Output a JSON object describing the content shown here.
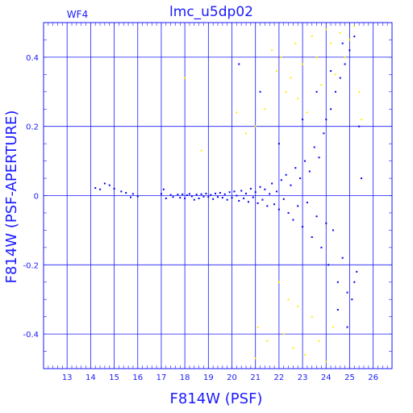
{
  "colors": {
    "axis": "#1a1aff",
    "series_main": "#0000ee",
    "series_rejected": "#ffee00",
    "background": "#ffffff"
  },
  "chart_data": {
    "type": "scatter",
    "title": "lmc_u5dp02",
    "panel_label": "WF4",
    "xlabel": "F814W (PSF)",
    "ylabel": "F814W (PSF-APERTURE)",
    "xlim": [
      12,
      26.8
    ],
    "ylim": [
      -0.5,
      0.5
    ],
    "x_ticks": [
      13,
      14,
      15,
      16,
      17,
      18,
      19,
      20,
      21,
      22,
      23,
      24,
      25,
      26
    ],
    "x_tick_labels": [
      "13",
      "14",
      "15",
      "16",
      "17",
      "18",
      "19",
      "20",
      "21",
      "22",
      "23",
      "24",
      "25",
      "26"
    ],
    "y_ticks": [
      -0.4,
      -0.2,
      0,
      0.2,
      0.4
    ],
    "y_tick_labels": [
      "-0.4",
      "-0.2",
      "0",
      "0.2",
      "0.4"
    ],
    "grid": true,
    "series": [
      {
        "color": "#0000ee",
        "points": [
          [
            14.2,
            0.022
          ],
          [
            14.4,
            0.018
          ],
          [
            14.6,
            0.035
          ],
          [
            14.8,
            0.03
          ],
          [
            15.0,
            0.02
          ],
          [
            15.3,
            0.012
          ],
          [
            15.5,
            0.008
          ],
          [
            15.7,
            -0.005
          ],
          [
            15.8,
            0.005
          ],
          [
            16.0,
            -0.002
          ],
          [
            17.0,
            0.005
          ],
          [
            17.1,
            0.018
          ],
          [
            17.2,
            -0.008
          ],
          [
            17.4,
            0.002
          ],
          [
            17.5,
            -0.004
          ],
          [
            17.7,
            0.003
          ],
          [
            17.8,
            -0.006
          ],
          [
            17.9,
            0.004
          ],
          [
            18.0,
            -0.008
          ],
          [
            18.1,
            0.001
          ],
          [
            18.2,
            0.005
          ],
          [
            18.3,
            -0.002
          ],
          [
            18.4,
            -0.012
          ],
          [
            18.5,
            0.003
          ],
          [
            18.6,
            -0.008
          ],
          [
            18.7,
            0.004
          ],
          [
            18.8,
            -0.003
          ],
          [
            18.9,
            0.006
          ],
          [
            19.0,
            -0.004
          ],
          [
            19.1,
            0.002
          ],
          [
            19.2,
            -0.01
          ],
          [
            19.3,
            0.006
          ],
          [
            19.4,
            -0.004
          ],
          [
            19.5,
            0.008
          ],
          [
            19.6,
            -0.006
          ],
          [
            19.7,
            0.004
          ],
          [
            19.8,
            -0.012
          ],
          [
            19.9,
            0.01
          ],
          [
            20.0,
            -0.006
          ],
          [
            20.1,
            0.012
          ],
          [
            20.2,
            0.0
          ],
          [
            20.3,
            -0.015
          ],
          [
            20.4,
            0.014
          ],
          [
            20.5,
            -0.008
          ],
          [
            20.6,
            0.006
          ],
          [
            20.7,
            -0.018
          ],
          [
            20.8,
            0.02
          ],
          [
            20.9,
            -0.005
          ],
          [
            21.0,
            0.01
          ],
          [
            21.1,
            -0.022
          ],
          [
            21.2,
            0.025
          ],
          [
            21.3,
            -0.012
          ],
          [
            21.4,
            0.018
          ],
          [
            21.5,
            -0.03
          ],
          [
            21.6,
            0.005
          ],
          [
            21.7,
            0.035
          ],
          [
            21.8,
            -0.025
          ],
          [
            21.9,
            0.012
          ],
          [
            22.0,
            -0.04
          ],
          [
            22.1,
            0.045
          ],
          [
            22.2,
            -0.01
          ],
          [
            22.3,
            0.06
          ],
          [
            22.4,
            -0.05
          ],
          [
            22.5,
            0.03
          ],
          [
            22.6,
            -0.07
          ],
          [
            22.7,
            0.08
          ],
          [
            22.8,
            -0.03
          ],
          [
            22.9,
            0.05
          ],
          [
            23.0,
            -0.09
          ],
          [
            23.1,
            0.1
          ],
          [
            23.2,
            -0.02
          ],
          [
            23.3,
            0.07
          ],
          [
            23.4,
            -0.12
          ],
          [
            23.5,
            0.14
          ],
          [
            23.6,
            -0.06
          ],
          [
            23.7,
            0.11
          ],
          [
            23.8,
            -0.15
          ],
          [
            23.9,
            0.18
          ],
          [
            24.0,
            -0.08
          ],
          [
            24.0,
            0.22
          ],
          [
            24.1,
            -0.2
          ],
          [
            24.2,
            0.25
          ],
          [
            24.3,
            -0.1
          ],
          [
            24.4,
            0.3
          ],
          [
            24.5,
            -0.25
          ],
          [
            24.6,
            0.34
          ],
          [
            24.7,
            -0.18
          ],
          [
            24.8,
            0.38
          ],
          [
            24.9,
            -0.28
          ],
          [
            25.0,
            0.42
          ],
          [
            25.1,
            -0.3
          ],
          [
            25.2,
            0.46
          ],
          [
            25.3,
            -0.22
          ],
          [
            25.4,
            0.2
          ],
          [
            25.5,
            0.05
          ],
          [
            20.3,
            0.38
          ],
          [
            21.2,
            0.3
          ],
          [
            22.0,
            0.15
          ],
          [
            23.0,
            0.22
          ],
          [
            23.6,
            0.3
          ],
          [
            24.2,
            0.36
          ],
          [
            24.7,
            0.44
          ],
          [
            24.5,
            -0.33
          ],
          [
            24.9,
            -0.38
          ],
          [
            25.2,
            -0.25
          ]
        ]
      },
      {
        "color": "#ffee00",
        "points": [
          [
            18.0,
            0.34
          ],
          [
            18.7,
            0.13
          ],
          [
            20.2,
            0.24
          ],
          [
            20.6,
            0.18
          ],
          [
            21.0,
            0.2
          ],
          [
            21.4,
            0.25
          ],
          [
            21.7,
            0.42
          ],
          [
            21.9,
            0.36
          ],
          [
            22.1,
            0.4
          ],
          [
            22.3,
            0.3
          ],
          [
            22.5,
            0.34
          ],
          [
            22.7,
            0.44
          ],
          [
            22.8,
            0.28
          ],
          [
            23.0,
            0.38
          ],
          [
            23.2,
            0.24
          ],
          [
            23.4,
            0.46
          ],
          [
            23.6,
            0.4
          ],
          [
            23.8,
            0.32
          ],
          [
            24.0,
            0.48
          ],
          [
            24.2,
            0.44
          ],
          [
            24.4,
            0.35
          ],
          [
            24.6,
            0.47
          ],
          [
            24.8,
            0.4
          ],
          [
            25.0,
            0.45
          ],
          [
            25.2,
            0.49
          ],
          [
            25.4,
            0.3
          ],
          [
            25.5,
            0.22
          ],
          [
            21.1,
            -0.38
          ],
          [
            21.5,
            -0.42
          ],
          [
            22.0,
            -0.25
          ],
          [
            22.2,
            -0.4
          ],
          [
            22.4,
            -0.3
          ],
          [
            22.8,
            -0.32
          ],
          [
            23.1,
            -0.46
          ],
          [
            23.4,
            -0.35
          ],
          [
            23.7,
            -0.42
          ],
          [
            24.0,
            -0.48
          ],
          [
            24.3,
            -0.38
          ],
          [
            21.0,
            -0.47
          ],
          [
            22.6,
            -0.44
          ]
        ]
      }
    ]
  }
}
